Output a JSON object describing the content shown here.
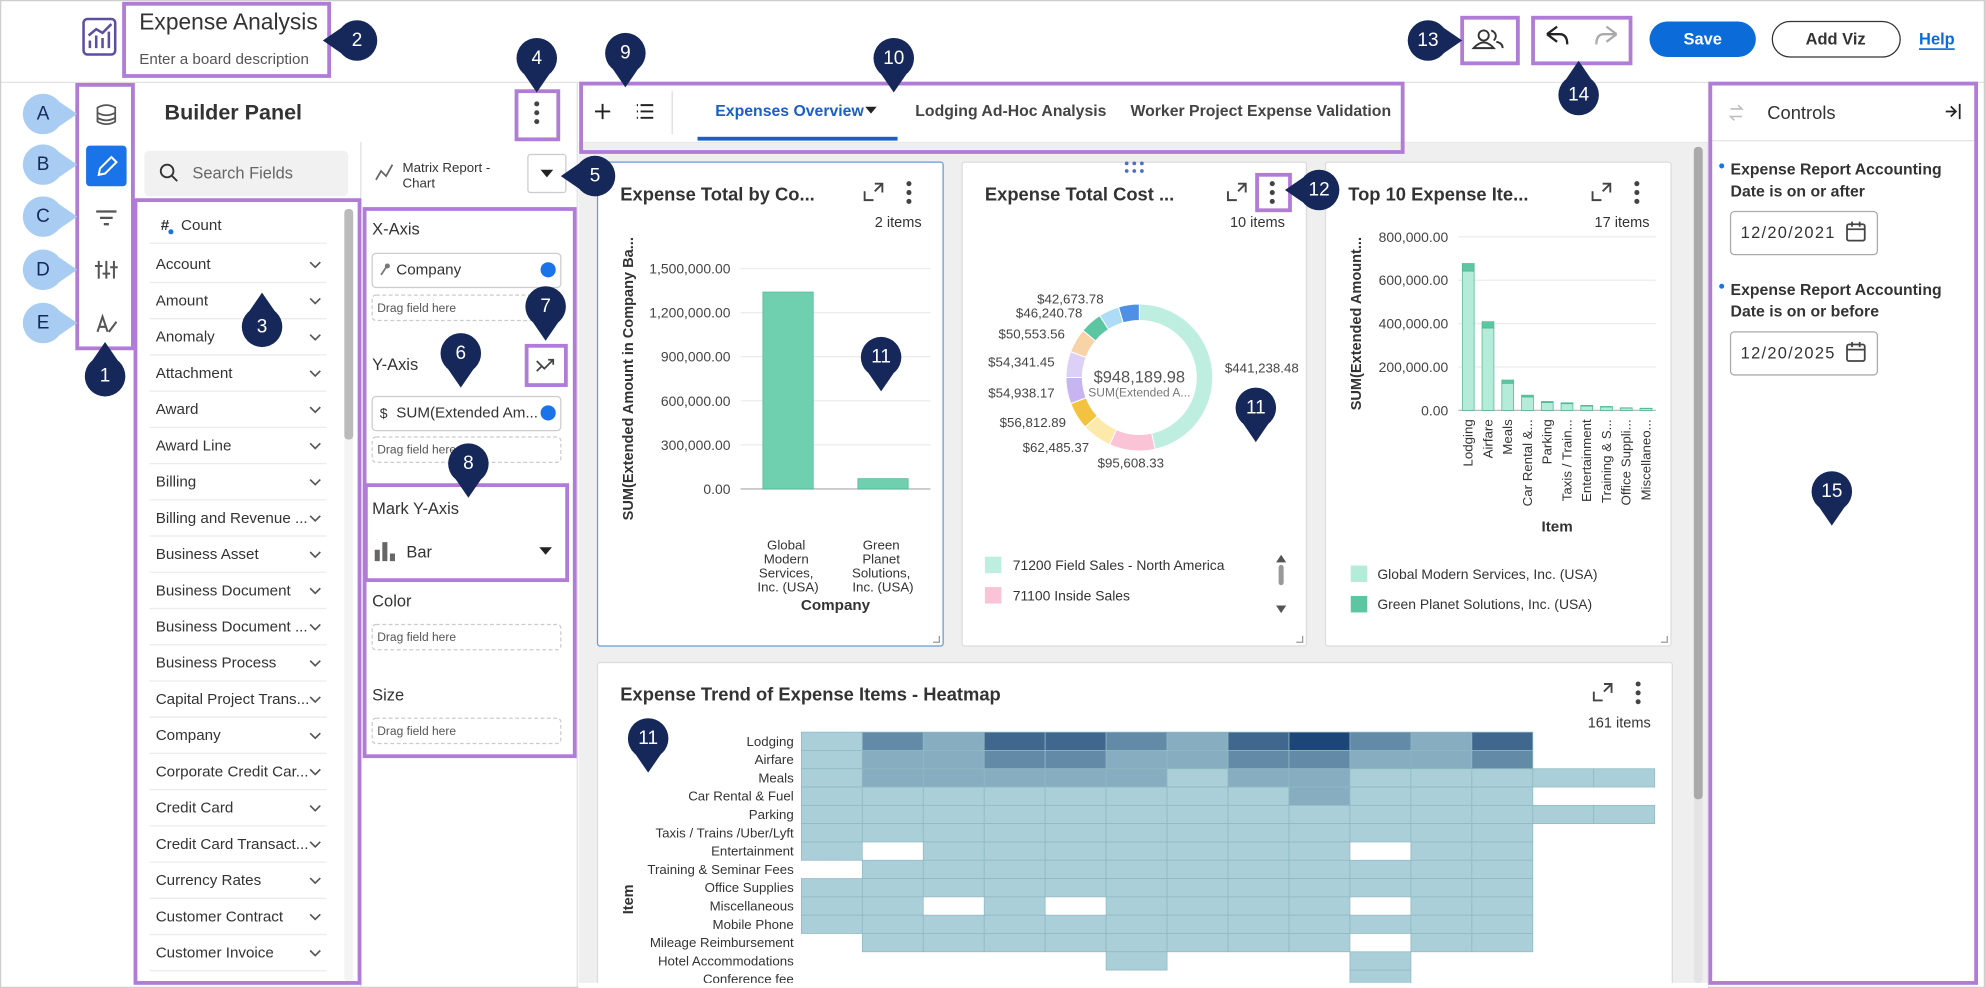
{
  "header": {
    "title": "Expense Analysis",
    "description": "Enter a board description",
    "save": "Save",
    "add_viz": "Add Viz",
    "help": "Help"
  },
  "builder_panel": {
    "title": "Builder Panel",
    "search_placeholder": "Search Fields",
    "fields": [
      "Count",
      "Account",
      "Amount",
      "Anomaly",
      "Attachment",
      "Award",
      "Award Line",
      "Billing",
      "Billing and Revenue ...",
      "Business Asset",
      "Business Document",
      "Business Document ...",
      "Business Process",
      "Capital Project Trans...",
      "Company",
      "Corporate Credit Car...",
      "Credit Card",
      "Credit Card Transact...",
      "Currency Rates",
      "Customer Contract",
      "Customer Invoice"
    ]
  },
  "config": {
    "report_type": "Matrix Report - Chart",
    "sections": [
      {
        "label": "X-Axis",
        "field": "Company",
        "drop_hint": "Drag field here"
      },
      {
        "label": "Y-Axis",
        "field_prefix": "$",
        "field": "SUM(Extended Am...",
        "drop_hint": "Drag field here"
      },
      {
        "label": "Mark Y-Axis",
        "field": "Bar"
      },
      {
        "label": "Color",
        "drop_hint": "Drag field here"
      },
      {
        "label": "Size",
        "drop_hint": "Drag field here"
      }
    ]
  },
  "tabs": {
    "items": [
      "Expenses Overview",
      "Lodging Ad-Hoc Analysis",
      "Worker Project Expense Validation"
    ],
    "active": 0
  },
  "chart_data": [
    {
      "type": "bar",
      "title": "Expense Total by Co...",
      "item_count": "2 items",
      "categories": [
        "Global Modern Services, Inc. (USA)",
        "Green Planet Solutions, Inc. (USA)"
      ],
      "values": [
        1340000,
        70000
      ],
      "color": "#6fd0b0",
      "ylim": [
        0,
        1500000
      ],
      "yticks": [
        {
          "value": 0,
          "label": "0.00"
        },
        {
          "value": 300000,
          "label": "300,000.00"
        },
        {
          "value": 600000,
          "label": "600,000.00"
        },
        {
          "value": 900000,
          "label": "900,000.00"
        },
        {
          "value": 1200000,
          "label": "1,200,000.00"
        },
        {
          "value": 1500000,
          "label": "1,500,000.00"
        }
      ],
      "grid": true,
      "x_label": "Company",
      "y_label": "SUM(Extended Amount in Company Ba..."
    },
    {
      "type": "pie",
      "donut": true,
      "title": "Expense Total Cost ...",
      "item_count": "10 items",
      "center_value": "$948,189.98",
      "center_label": "SUM(Extended A...",
      "categories": [
        "71200 Field Sales - North America",
        "71100 Inside Sales",
        null,
        null,
        null,
        null,
        null,
        null,
        null,
        null
      ],
      "values": [
        441238.48,
        95608.33,
        62485.37,
        56812.89,
        54938.17,
        54341.45,
        50553.56,
        46240.78,
        42673.78,
        43297.17
      ],
      "value_labels": [
        "$441,238.48",
        "$95,608.33",
        "$62,485.37",
        "$56,812.89",
        "$54,938.17",
        "$54,341.45",
        "$50,553.56",
        "$46,240.78",
        "$42,673.78",
        null
      ],
      "colors": [
        "#bdeee0",
        "#fbc3d6",
        "#fde9a9",
        "#f3c33f",
        "#c7b5f2",
        "#dcd0f7",
        "#f9d3a8",
        "#5cc6a2",
        "#aedcf5",
        "#4f8fe6"
      ]
    },
    {
      "type": "bar",
      "stacked": true,
      "title": "Top 10 Expense Ite...",
      "item_count": "17 items",
      "categories": [
        "Lodging",
        "Airfare",
        "Meals",
        "Car Rental &...",
        "Parking",
        "Taxis / Train...",
        "Entertainment",
        "Training & S...",
        "Office Suppli...",
        "Miscellaneo..."
      ],
      "series": [
        {
          "name": "Global Modern Services, Inc. (USA)",
          "color": "#b5ecd9",
          "values": [
            642000,
            380000,
            125000,
            62000,
            36000,
            31000,
            20000,
            16000,
            11000,
            9000
          ]
        },
        {
          "name": "Green Planet Solutions, Inc. (USA)",
          "color": "#5cc6a2",
          "values": [
            35000,
            29000,
            15000,
            8000,
            5000,
            4000,
            3000,
            2000,
            1000,
            1000
          ]
        }
      ],
      "ylim": [
        0,
        800000
      ],
      "yticks": [
        {
          "value": 0,
          "label": "0.00"
        },
        {
          "value": 200000,
          "label": "200,000.00"
        },
        {
          "value": 400000,
          "label": "400,000.00"
        },
        {
          "value": 600000,
          "label": "600,000.00"
        },
        {
          "value": 800000,
          "label": "800,000.00"
        }
      ],
      "grid": true,
      "x_label": "Item",
      "y_label": "SUM(Extended Amount..."
    },
    {
      "type": "heatmap",
      "title": "Expense Trend of Expense Items - Heatmap",
      "item_count": "161 items",
      "y_label": "Item",
      "rows": [
        "Lodging",
        "Airfare",
        "Meals",
        "Car Rental & Fuel",
        "Parking",
        "Taxis / Trains /Uber/Lyft",
        "Entertainment",
        "Training & Seminar Fees",
        "Office Supplies",
        "Miscellaneous",
        "Mobile Phone",
        "Mileage Reimbursement",
        "Hotel Accommodations",
        "Conference fee"
      ],
      "clim": [
        1,
        5
      ],
      "color_low": "#aacfd8",
      "color_high": "#1c4677",
      "values": [
        [
          1,
          3,
          2,
          4,
          4,
          3,
          2,
          4,
          5,
          3,
          2,
          4,
          null,
          null
        ],
        [
          1,
          2,
          2,
          3,
          3,
          2,
          2,
          3,
          3,
          2,
          2,
          3,
          null,
          null
        ],
        [
          1,
          2,
          2,
          2,
          2,
          2,
          1,
          2,
          2,
          1,
          1,
          1,
          1,
          1
        ],
        [
          1,
          1,
          1,
          1,
          1,
          1,
          1,
          1,
          2,
          1,
          1,
          1,
          null,
          null
        ],
        [
          1,
          1,
          1,
          1,
          1,
          1,
          1,
          1,
          1,
          1,
          1,
          1,
          1,
          1
        ],
        [
          1,
          1,
          1,
          1,
          1,
          1,
          1,
          1,
          1,
          1,
          1,
          1,
          null,
          null
        ],
        [
          1,
          null,
          1,
          1,
          1,
          1,
          1,
          1,
          1,
          null,
          1,
          1,
          null,
          null
        ],
        [
          null,
          1,
          1,
          1,
          1,
          1,
          1,
          1,
          1,
          1,
          1,
          1,
          null,
          null
        ],
        [
          1,
          1,
          1,
          1,
          1,
          1,
          1,
          1,
          1,
          1,
          1,
          1,
          null,
          null
        ],
        [
          1,
          1,
          null,
          1,
          null,
          1,
          1,
          1,
          1,
          null,
          1,
          1,
          null,
          null
        ],
        [
          1,
          1,
          1,
          1,
          1,
          1,
          1,
          1,
          1,
          1,
          1,
          1,
          null,
          null
        ],
        [
          null,
          1,
          1,
          1,
          1,
          1,
          1,
          1,
          1,
          null,
          1,
          1,
          null,
          null
        ],
        [
          null,
          null,
          null,
          null,
          null,
          1,
          null,
          null,
          null,
          1,
          null,
          null,
          null,
          null
        ],
        [
          null,
          null,
          null,
          null,
          null,
          null,
          null,
          null,
          null,
          1,
          null,
          null,
          null,
          null
        ]
      ]
    }
  ],
  "controls": {
    "title": "Controls",
    "filters": [
      {
        "label": "Expense Report Accounting Date is on or after",
        "value": "12/20/2021"
      },
      {
        "label": "Expense Report Accounting Date is on or before",
        "value": "12/20/2025"
      }
    ]
  },
  "annotations": {
    "letters": [
      "A",
      "B",
      "C",
      "D",
      "E"
    ],
    "numbers": [
      "1",
      "2",
      "3",
      "4",
      "5",
      "6",
      "7",
      "8",
      "9",
      "10",
      "11",
      "11",
      "11",
      "12",
      "13",
      "14",
      "15"
    ]
  }
}
